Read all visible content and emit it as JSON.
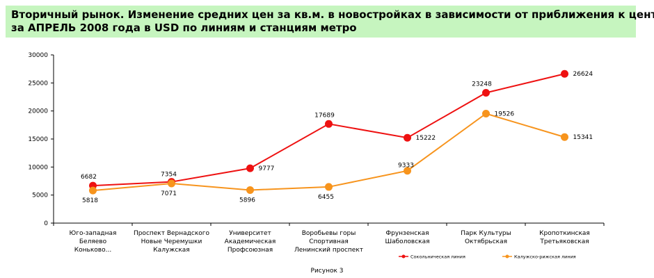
{
  "title": {
    "line1": "Вторичный рынок. Изменение средних цен за кв.м. в новостройках в зависимости от приближения к центру",
    "line2": "за   АПРЕЛЬ  2008  года в USD по линиям и станциям метро"
  },
  "caption": "Рисунок 3",
  "chart_data": {
    "type": "line",
    "categories": [
      [
        "Юго-западная",
        "Беляево",
        "Коньково..."
      ],
      [
        "Проспект Вернадского",
        "Новые Черемушки",
        "Калужская"
      ],
      [
        "Университет",
        "Академическая",
        "Профсоюзная"
      ],
      [
        "Воробьевы горы",
        "Спортивная",
        "Ленинский проспект"
      ],
      [
        "Фрунзенская",
        "Шаболовская"
      ],
      [
        "Парк Культуры",
        "Октябрьская"
      ],
      [
        "Кропоткинская",
        "Третьяковская"
      ]
    ],
    "series": [
      {
        "name": "Сокольническая линия",
        "color": "#ee1111",
        "values": [
          6682,
          7354,
          9777,
          17689,
          15222,
          23248,
          26624
        ],
        "labels": [
          "6682",
          "7354",
          "9777",
          "17689",
          "15222",
          "23248",
          "26624"
        ]
      },
      {
        "name": "Калужско-рижская линия",
        "color": "#f7941d",
        "values": [
          5818,
          7071,
          5896,
          6455,
          9333,
          19526,
          15341
        ],
        "labels": [
          "5818",
          "7071",
          "5896",
          "6455",
          "9333",
          "19526",
          "15341"
        ]
      }
    ],
    "yticks": [
      0,
      5000,
      10000,
      15000,
      20000,
      25000,
      30000
    ],
    "ylim": [
      0,
      30000
    ],
    "grid": false,
    "legend": "bottom-right"
  }
}
